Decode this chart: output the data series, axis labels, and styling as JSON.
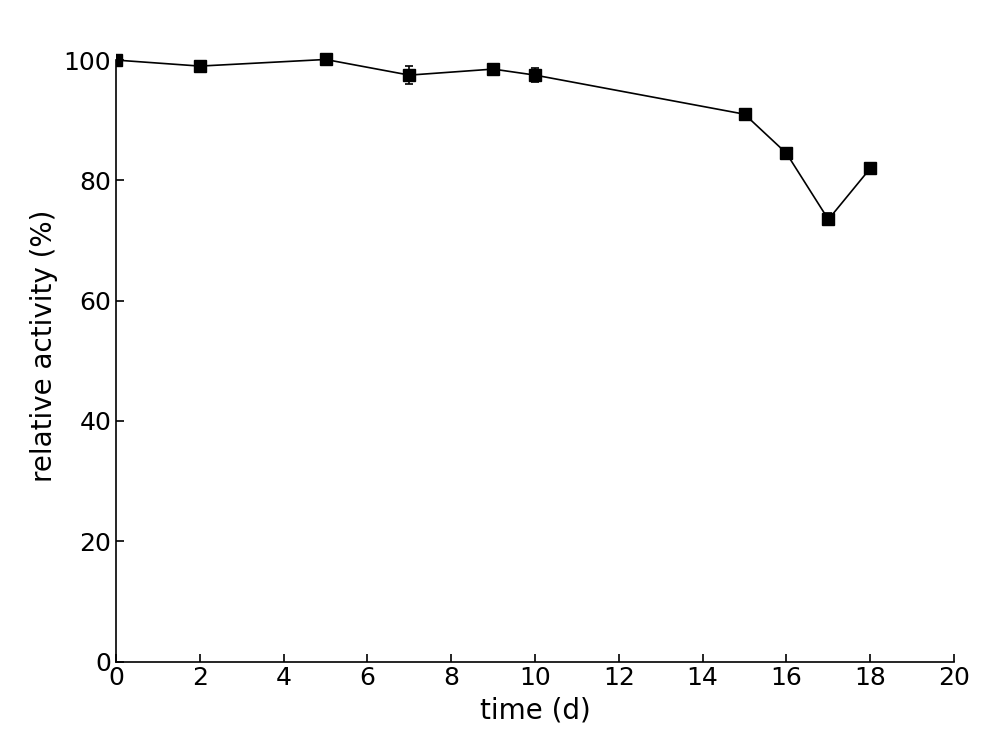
{
  "x": [
    0,
    2,
    5,
    7,
    9,
    10,
    15,
    16,
    17,
    18
  ],
  "y": [
    100.0,
    99.0,
    100.1,
    97.5,
    98.5,
    97.5,
    91.0,
    84.5,
    73.5,
    82.0
  ],
  "yerr": [
    0,
    0,
    0,
    1.5,
    0.8,
    1.2,
    0,
    0,
    1.0,
    0
  ],
  "xlabel": "time (d)",
  "ylabel": "relative activity (%)",
  "xlim": [
    0,
    20
  ],
  "ylim": [
    0,
    105
  ],
  "xticks": [
    0,
    2,
    4,
    6,
    8,
    10,
    12,
    14,
    16,
    18,
    20
  ],
  "yticks": [
    0,
    20,
    40,
    60,
    80,
    100
  ],
  "line_color": "#000000",
  "marker": "s",
  "marker_color": "#000000",
  "marker_size": 8,
  "line_width": 1.2,
  "xlabel_fontsize": 20,
  "ylabel_fontsize": 20,
  "tick_fontsize": 18,
  "background_color": "#ffffff",
  "figsize": [
    10.0,
    7.54
  ]
}
